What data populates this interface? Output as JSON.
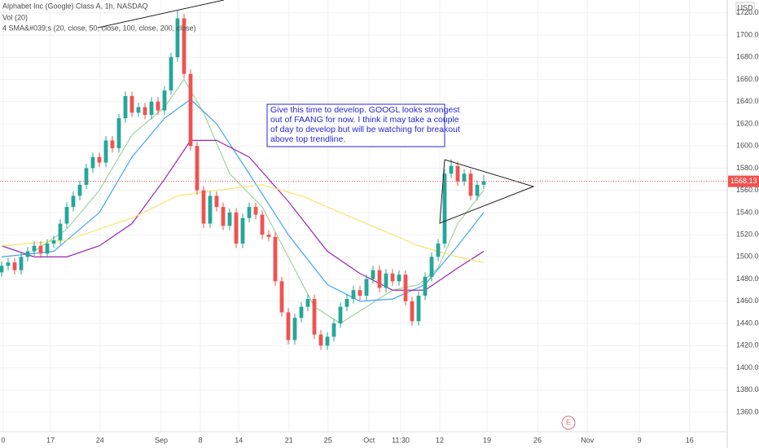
{
  "chart_data": {
    "type": "candlestick",
    "title": "Alphabet Inc (Google) Class A, 1h, NASDAQ",
    "indicator_labels": [
      "Vol (20)",
      "4 SMA&#039;s (20, close, 50, close, 100, close, 200, close)"
    ],
    "currency": "USD",
    "annotation": [
      "Give this time to develop. GOOGL looks strongest",
      "out of FAANG for now. I think it may take a couple",
      "of day to develop but will be watching for breakout",
      "above top trendline."
    ],
    "event_marker": "E",
    "xlim": [
      -0.25,
      111.375
    ],
    "ylim": [
      1336.5,
      1731.6
    ],
    "grid": true,
    "up_color": "#26a69a",
    "down_color": "#ef5350",
    "xticks": [
      {
        "value": 0.25,
        "label": "0"
      },
      {
        "value": 7.5,
        "label": "17"
      },
      {
        "value": 15.1,
        "label": "24"
      },
      {
        "value": 24.5,
        "label": "Sep"
      },
      {
        "value": 30.5,
        "label": "8"
      },
      {
        "value": 36.4,
        "label": "14"
      },
      {
        "value": 44.1,
        "label": "21"
      },
      {
        "value": 50.1,
        "label": "25"
      },
      {
        "value": 56.4,
        "label": "Oct"
      },
      {
        "value": 61.25,
        "label": "11:30"
      },
      {
        "value": 67.25,
        "label": "12"
      },
      {
        "value": 74.5,
        "label": "19"
      },
      {
        "value": 82.25,
        "label": "26"
      },
      {
        "value": 89.9,
        "label": "Nov"
      },
      {
        "value": 97.9,
        "label": "9"
      },
      {
        "value": 105.6,
        "label": "16"
      }
    ],
    "yticks": [
      {
        "value": 1360,
        "label": "1360.00"
      },
      {
        "value": 1380,
        "label": "1380.00"
      },
      {
        "value": 1400,
        "label": "1400.00"
      },
      {
        "value": 1420,
        "label": "1420.00"
      },
      {
        "value": 1440,
        "label": "1440.00"
      },
      {
        "value": 1460,
        "label": "1460.00"
      },
      {
        "value": 1480,
        "label": "1480.00"
      },
      {
        "value": 1500,
        "label": "1500.00"
      },
      {
        "value": 1520,
        "label": "1520.00"
      },
      {
        "value": 1540,
        "label": "1540.00"
      },
      {
        "value": 1560,
        "label": "1560.00"
      },
      {
        "value": 1580,
        "label": "1580.00"
      },
      {
        "value": 1600,
        "label": "1600.00"
      },
      {
        "value": 1620,
        "label": "1620.00"
      },
      {
        "value": 1640,
        "label": "1640.00"
      },
      {
        "value": 1660,
        "label": "1660.00"
      },
      {
        "value": 1680,
        "label": "1680.00"
      },
      {
        "value": 1700,
        "label": "1700.00"
      },
      {
        "value": 1720,
        "label": "1720.00"
      }
    ],
    "open": [
      1486,
      1492,
      1495,
      1488,
      1500,
      1505,
      1510,
      1503,
      1512,
      1515,
      1530,
      1545,
      1555,
      1565,
      1580,
      1590,
      1585,
      1605,
      1598,
      1625,
      1645,
      1630,
      1635,
      1628,
      1640,
      1632,
      1650,
      1680,
      1715,
      1665,
      1600,
      1560,
      1530,
      1555,
      1545,
      1528,
      1540,
      1512,
      1535,
      1545,
      1538,
      1520,
      1518,
      1478,
      1450,
      1425,
      1445,
      1455,
      1462,
      1430,
      1420,
      1428,
      1440,
      1455,
      1462,
      1470,
      1465,
      1480,
      1488,
      1472,
      1485,
      1478,
      1484,
      1460,
      1442,
      1465,
      1482,
      1500,
      1512,
      1575,
      1582,
      1568,
      1575,
      1555,
      1565
    ],
    "high": [
      1496,
      1499,
      1499,
      1504,
      1509,
      1514,
      1514,
      1516,
      1519,
      1534,
      1549,
      1559,
      1569,
      1584,
      1594,
      1594,
      1609,
      1609,
      1629,
      1649,
      1649,
      1639,
      1639,
      1644,
      1644,
      1654,
      1684,
      1722,
      1719,
      1669,
      1604,
      1564,
      1559,
      1559,
      1549,
      1544,
      1544,
      1539,
      1549,
      1549,
      1542,
      1524,
      1522,
      1482,
      1454,
      1449,
      1459,
      1466,
      1466,
      1434,
      1432,
      1444,
      1459,
      1466,
      1474,
      1474,
      1484,
      1492,
      1492,
      1489,
      1489,
      1488,
      1488,
      1464,
      1469,
      1486,
      1504,
      1516,
      1579,
      1588,
      1586,
      1579,
      1579,
      1569,
      1574
    ],
    "low": [
      1482,
      1488,
      1484,
      1484,
      1496,
      1501,
      1499,
      1499,
      1508,
      1511,
      1526,
      1541,
      1551,
      1561,
      1576,
      1581,
      1581,
      1594,
      1594,
      1621,
      1626,
      1626,
      1624,
      1624,
      1628,
      1628,
      1646,
      1676,
      1661,
      1596,
      1556,
      1526,
      1526,
      1541,
      1524,
      1524,
      1508,
      1508,
      1531,
      1534,
      1516,
      1514,
      1474,
      1446,
      1421,
      1421,
      1441,
      1451,
      1426,
      1416,
      1416,
      1424,
      1436,
      1451,
      1458,
      1461,
      1461,
      1476,
      1468,
      1468,
      1474,
      1474,
      1456,
      1438,
      1438,
      1461,
      1478,
      1496,
      1508,
      1571,
      1564,
      1564,
      1551,
      1551,
      1561
    ],
    "close": [
      1492,
      1495,
      1488,
      1500,
      1505,
      1510,
      1503,
      1512,
      1515,
      1530,
      1545,
      1555,
      1565,
      1580,
      1590,
      1585,
      1605,
      1598,
      1625,
      1645,
      1630,
      1635,
      1628,
      1640,
      1632,
      1650,
      1680,
      1715,
      1665,
      1600,
      1560,
      1530,
      1555,
      1545,
      1528,
      1540,
      1512,
      1535,
      1545,
      1538,
      1520,
      1518,
      1478,
      1450,
      1425,
      1445,
      1455,
      1462,
      1430,
      1420,
      1428,
      1440,
      1455,
      1462,
      1470,
      1465,
      1480,
      1488,
      1472,
      1485,
      1478,
      1484,
      1460,
      1442,
      1465,
      1482,
      1500,
      1512,
      1575,
      1582,
      1568,
      1575,
      1555,
      1565,
      1568.13
    ],
    "series": [
      {
        "color": "#9fd3a0",
        "x": [
          5,
          10,
          15,
          20,
          25,
          28,
          31,
          35,
          40,
          44,
          48,
          52,
          56,
          60,
          64,
          67,
          70,
          74
        ],
        "values": [
          1505,
          1525,
          1560,
          1610,
          1635,
          1660,
          1630,
          1575,
          1545,
          1500,
          1455,
          1440,
          1455,
          1470,
          1475,
          1490,
          1530,
          1560
        ]
      },
      {
        "color": "#42a5f5",
        "x": [
          0,
          8,
          15,
          20,
          25,
          29,
          33,
          38,
          44,
          50,
          55,
          60,
          65,
          70,
          74
        ],
        "values": [
          1500,
          1505,
          1540,
          1590,
          1625,
          1642,
          1620,
          1575,
          1520,
          1475,
          1460,
          1462,
          1475,
          1510,
          1540
        ]
      },
      {
        "color": "#9c27b0",
        "x": [
          0,
          5,
          10,
          15,
          20,
          25,
          29,
          33,
          38,
          44,
          50,
          55,
          60,
          65,
          70,
          74
        ],
        "values": [
          1510,
          1500,
          1500,
          1510,
          1530,
          1570,
          1605,
          1605,
          1590,
          1550,
          1505,
          1485,
          1470,
          1470,
          1490,
          1505
        ]
      },
      {
        "color": "#f5e56b",
        "x": [
          0,
          10,
          20,
          27,
          33,
          40,
          46,
          52,
          58,
          64,
          70,
          74
        ],
        "values": [
          1510,
          1515,
          1535,
          1555,
          1560,
          1565,
          1555,
          1540,
          1525,
          1510,
          1500,
          1495
        ]
      }
    ]
  }
}
